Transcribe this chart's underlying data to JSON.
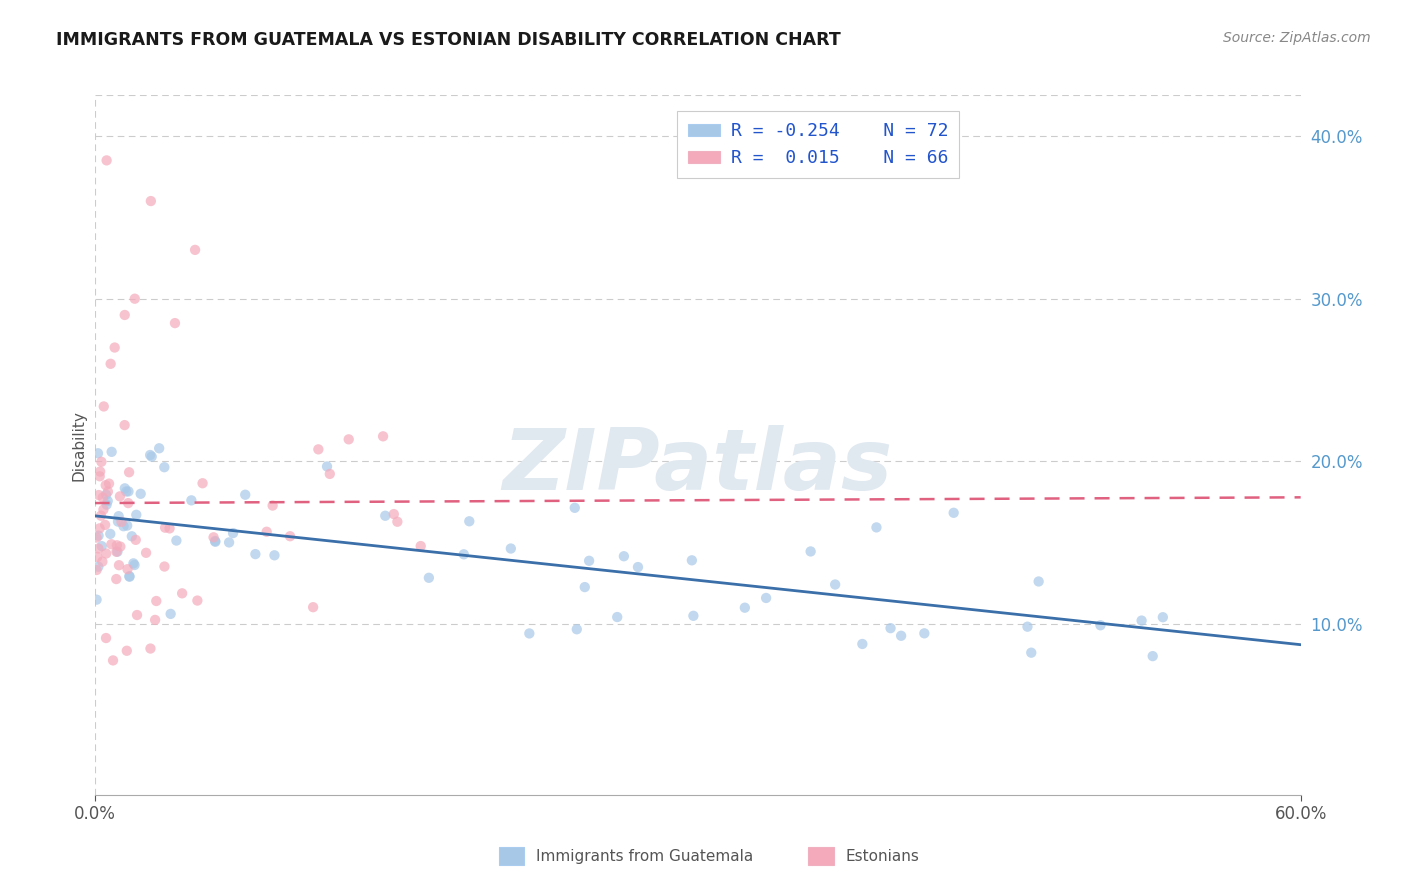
{
  "title": "IMMIGRANTS FROM GUATEMALA VS ESTONIAN DISABILITY CORRELATION CHART",
  "source": "Source: ZipAtlas.com",
  "ylabel": "Disability",
  "right_yticklabels": [
    "10.0%",
    "20.0%",
    "30.0%",
    "40.0%"
  ],
  "right_ytick_vals": [
    0.1,
    0.2,
    0.3,
    0.4
  ],
  "xlim": [
    0.0,
    0.6
  ],
  "ylim": [
    -0.005,
    0.425
  ],
  "legend_bottom_labels": [
    "Immigrants from Guatemala",
    "Estonians"
  ],
  "watermark": "ZIPatlas",
  "background_color": "#ffffff",
  "title_color": "#1a1a1a",
  "title_fontsize": 12.5,
  "axis_label_color": "#555555",
  "tick_label_color": "#5599cc",
  "grid_color": "#cccccc",
  "blue_scatter_color": "#a8c8e8",
  "pink_scatter_color": "#f4aabb",
  "blue_line_color": "#3a6faa",
  "pink_line_color": "#e06080",
  "scatter_alpha": 0.7,
  "scatter_size": 55,
  "legend_R_color": "#2255cc",
  "legend_label_color": "#333333",
  "blue_line_start_y": 0.165,
  "blue_line_end_y": 0.082,
  "pink_line_start_y": 0.163,
  "pink_line_end_y": 0.178,
  "pink_line_end_x": 0.6
}
